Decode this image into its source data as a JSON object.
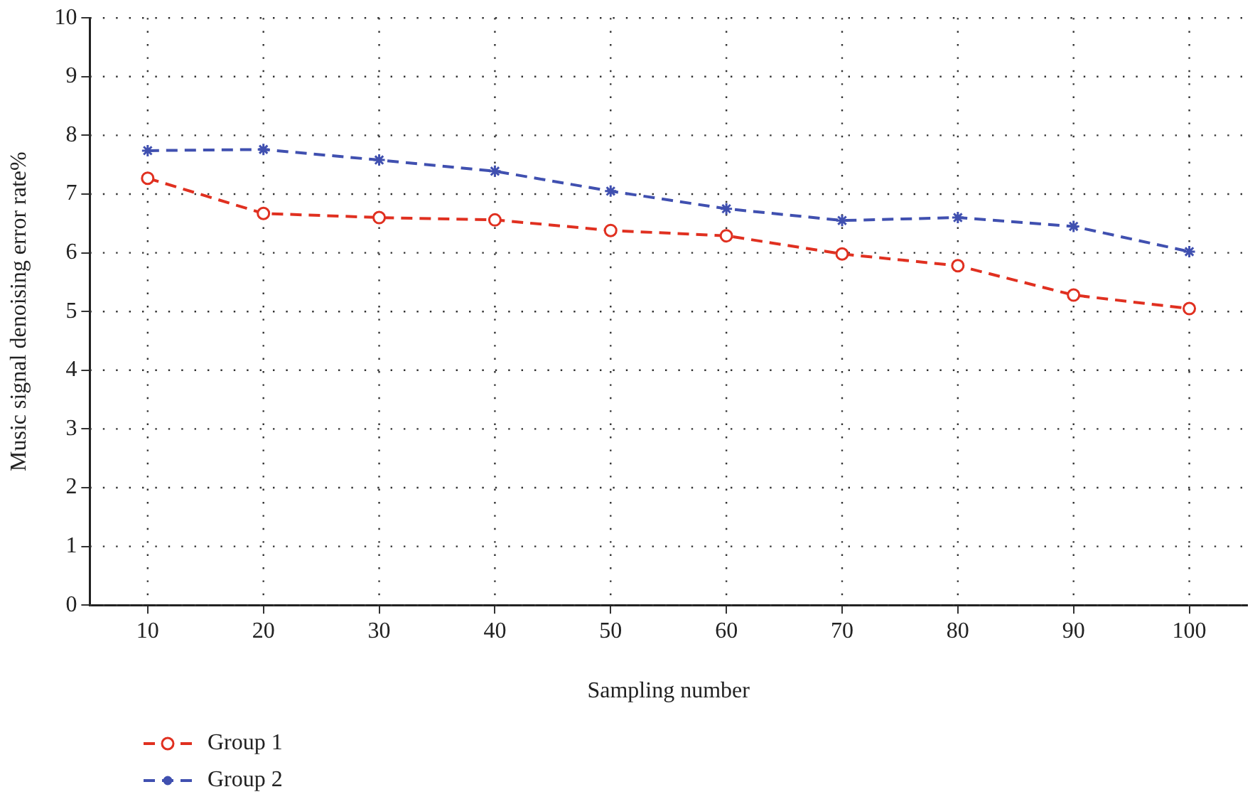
{
  "chart_data": {
    "type": "line",
    "xlabel": "Sampling number",
    "ylabel": "Music signal denoising error rate%",
    "x": [
      10,
      20,
      30,
      40,
      50,
      60,
      70,
      80,
      90,
      100
    ],
    "series": [
      {
        "name": "Group 1",
        "color": "#e03020",
        "marker": "circle",
        "line_style": "dashed",
        "values": [
          7.27,
          6.67,
          6.6,
          6.56,
          6.38,
          6.29,
          5.98,
          5.78,
          5.28,
          5.05
        ]
      },
      {
        "name": "Group 2",
        "color": "#4050b0",
        "marker": "cross",
        "line_style": "dashed",
        "values": [
          7.74,
          7.76,
          7.58,
          7.39,
          7.05,
          6.75,
          6.55,
          6.6,
          6.45,
          6.02
        ]
      }
    ],
    "xlim": [
      5,
      105
    ],
    "xticks": [
      10,
      20,
      30,
      40,
      50,
      60,
      70,
      80,
      90,
      100
    ],
    "ylim": [
      0,
      10
    ],
    "yticks": [
      0,
      1,
      2,
      3,
      4,
      5,
      6,
      7,
      8,
      9,
      10
    ],
    "grid": true,
    "legend": "bottom left"
  }
}
